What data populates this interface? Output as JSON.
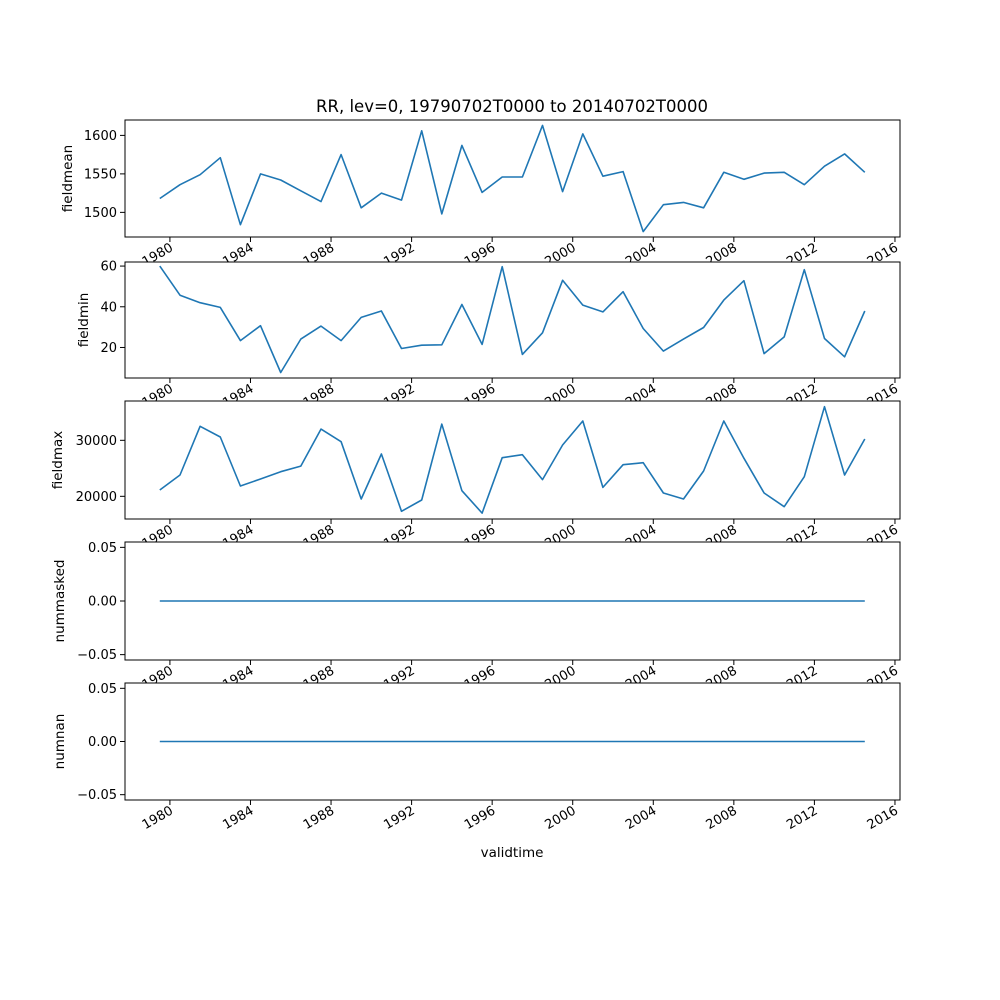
{
  "chart_data": {
    "type": "line",
    "title": "RR, lev=0, 19790702T0000 to 20140702T0000",
    "xlabel": "validtime",
    "line_color": "#1f77b4",
    "x": [
      1979,
      1980,
      1981,
      1982,
      1983,
      1984,
      1985,
      1986,
      1987,
      1988,
      1989,
      1990,
      1991,
      1992,
      1993,
      1994,
      1995,
      1996,
      1997,
      1998,
      1999,
      2000,
      2001,
      2002,
      2003,
      2004,
      2005,
      2006,
      2007,
      2008,
      2009,
      2010,
      2011,
      2012,
      2013,
      2014
    ],
    "x_date_suffix": "-07-02",
    "xlim": [
      1977.77,
      2016.25
    ],
    "xticks": [
      1980,
      1984,
      1988,
      1992,
      1996,
      2000,
      2004,
      2008,
      2012,
      2016
    ],
    "subplots": [
      {
        "ylabel": "fieldmean",
        "ylim": [
          1468,
          1620
        ],
        "yticks": [
          1500,
          1550,
          1600
        ],
        "ytick_labels": [
          "1500",
          "1550",
          "1600"
        ],
        "values": [
          1518,
          1536,
          1549,
          1571,
          1484,
          1550,
          1542,
          1528,
          1514,
          1575,
          1506,
          1525,
          1516,
          1606,
          1498,
          1587,
          1526,
          1546,
          1546,
          1613,
          1527,
          1602,
          1547,
          1553,
          1475,
          1510,
          1513,
          1506,
          1552,
          1543,
          1551,
          1552,
          1536,
          1560,
          1576,
          1552
        ]
      },
      {
        "ylabel": "fieldmin",
        "ylim": [
          5,
          62
        ],
        "yticks": [
          20,
          40,
          60
        ],
        "ytick_labels": [
          "20",
          "40",
          "60"
        ],
        "values": [
          60,
          45.7,
          42,
          39.7,
          23.4,
          30.7,
          7.7,
          24.1,
          30.5,
          23.4,
          34.8,
          37.9,
          19.5,
          21.1,
          21.3,
          41.1,
          21.5,
          59.7,
          16.6,
          27.2,
          53,
          40.8,
          37.5,
          47.4,
          29.3,
          18.2,
          24.1,
          29.8,
          43.3,
          52.8,
          17,
          25.2,
          58.2,
          24.4,
          15.4,
          37.9
        ]
      },
      {
        "ylabel": "fieldmax",
        "ylim": [
          15950,
          37020
        ],
        "yticks": [
          20000,
          30000
        ],
        "ytick_labels": [
          "20000",
          "30000"
        ],
        "values": [
          21130,
          23810,
          32500,
          30600,
          21850,
          23100,
          24400,
          25400,
          32000,
          29760,
          19520,
          27560,
          17320,
          19350,
          32900,
          21000,
          17000,
          26900,
          27440,
          22980,
          29170,
          33450,
          21600,
          25650,
          26000,
          20600,
          19520,
          24520,
          33450,
          26800,
          20600,
          18150,
          23500,
          36000,
          23800,
          30240
        ]
      },
      {
        "ylabel": "nummasked",
        "ylim": [
          -0.055,
          0.055
        ],
        "yticks": [
          -0.05,
          0,
          0.05
        ],
        "ytick_labels": [
          "−0.05",
          "0.00",
          "0.05"
        ],
        "values": [
          0,
          0,
          0,
          0,
          0,
          0,
          0,
          0,
          0,
          0,
          0,
          0,
          0,
          0,
          0,
          0,
          0,
          0,
          0,
          0,
          0,
          0,
          0,
          0,
          0,
          0,
          0,
          0,
          0,
          0,
          0,
          0,
          0,
          0,
          0,
          0
        ]
      },
      {
        "ylabel": "numnan",
        "ylim": [
          -0.055,
          0.055
        ],
        "yticks": [
          -0.05,
          0,
          0.05
        ],
        "ytick_labels": [
          "−0.05",
          "0.00",
          "0.05"
        ],
        "values": [
          0,
          0,
          0,
          0,
          0,
          0,
          0,
          0,
          0,
          0,
          0,
          0,
          0,
          0,
          0,
          0,
          0,
          0,
          0,
          0,
          0,
          0,
          0,
          0,
          0,
          0,
          0,
          0,
          0,
          0,
          0,
          0,
          0,
          0,
          0,
          0
        ]
      }
    ]
  }
}
